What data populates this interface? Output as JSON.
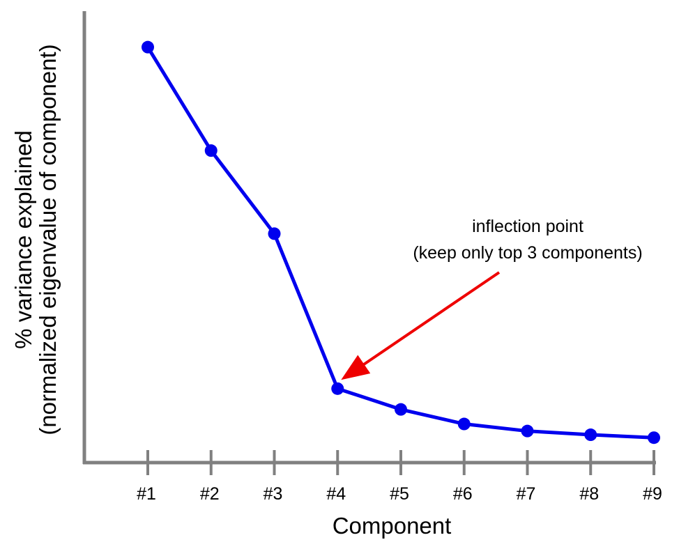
{
  "chart_data": {
    "type": "line",
    "title": "",
    "xlabel": "Component",
    "ylabel_lines": [
      "% variance explained",
      "(normalized eigenvalue of component)"
    ],
    "categories": [
      "#1",
      "#2",
      "#3",
      "#4",
      "#5",
      "#6",
      "#7",
      "#8",
      "#9"
    ],
    "series": [
      {
        "values": [
          100,
          75.1,
          55.1,
          17.8,
          12.8,
          9.3,
          7.6,
          6.7,
          6.0
        ]
      }
    ],
    "ylim": [
      0,
      110
    ],
    "y_tick_labels_shown": false,
    "grid": false,
    "annotation": {
      "lines": [
        "inflection point",
        "(keep only top 3 components)"
      ],
      "target_category": "#4"
    },
    "colors": {
      "series": "#0000ee",
      "axis": "#808080",
      "arrow": "#ee0000"
    }
  }
}
